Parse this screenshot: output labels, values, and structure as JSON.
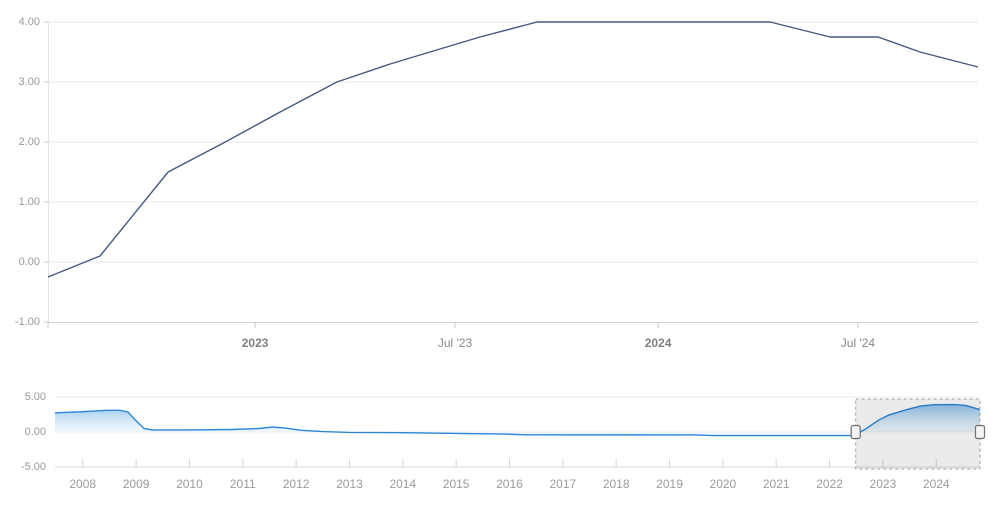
{
  "page": {
    "background": "#ffffff",
    "accent_line_color": "#46597e",
    "navigator_line_color": "#2a86d9"
  },
  "chart_data": [
    {
      "type": "line",
      "name": "main-rate-chart",
      "title": "",
      "xlabel": "",
      "ylabel": "",
      "grid": "horizontal",
      "legend": "none",
      "x_range": [
        2022.486,
        2024.794
      ],
      "ylim": [
        -1,
        4
      ],
      "y_tick_labels": [
        "4.00",
        "3.00",
        "2.00",
        "1.00",
        "0.00",
        "-1.00"
      ],
      "y_tick_values": [
        4,
        3,
        2,
        1,
        0,
        -1
      ],
      "x_ticks": [
        {
          "label": "2023",
          "value": 2023.0,
          "bold": true
        },
        {
          "label": "Jul '23",
          "value": 2023.496,
          "bold": false
        },
        {
          "label": "2024",
          "value": 2024.0,
          "bold": true
        },
        {
          "label": "Jul '24",
          "value": 2024.496,
          "bold": false
        }
      ],
      "series": [
        {
          "name": "interest-rate",
          "color": "#46597e",
          "points": [
            [
              2022.486,
              -0.25
            ],
            [
              2022.615,
              0.1
            ],
            [
              2022.784,
              1.5
            ],
            [
              2022.926,
              2.0
            ],
            [
              2023.062,
              2.5
            ],
            [
              2023.203,
              3.0
            ],
            [
              2023.335,
              3.3
            ],
            [
              2023.434,
              3.5
            ],
            [
              2023.558,
              3.75
            ],
            [
              2023.7,
              4.0
            ],
            [
              2024.278,
              4.0
            ],
            [
              2024.427,
              3.75
            ],
            [
              2024.546,
              3.75
            ],
            [
              2024.65,
              3.5
            ],
            [
              2024.794,
              3.25
            ]
          ]
        }
      ]
    },
    {
      "type": "area",
      "name": "navigator-history",
      "x_range": [
        2007.48,
        2024.82
      ],
      "ylim": [
        -5,
        5
      ],
      "y_tick_labels": [
        "5.00",
        "0.00",
        "-5.00"
      ],
      "y_tick_values": [
        5,
        0,
        -5
      ],
      "x_tick_values": [
        2008,
        2009,
        2010,
        2011,
        2012,
        2013,
        2014,
        2015,
        2016,
        2017,
        2018,
        2019,
        2020,
        2021,
        2022,
        2023,
        2024
      ],
      "x_tick_labels": [
        "2008",
        "2009",
        "2010",
        "2011",
        "2012",
        "2013",
        "2014",
        "2015",
        "2016",
        "2017",
        "2018",
        "2019",
        "2020",
        "2021",
        "2022",
        "2023",
        "2024"
      ],
      "series": [
        {
          "name": "interest-rate-history",
          "color": "#2a86d9",
          "points": [
            [
              2007.48,
              2.75
            ],
            [
              2008.0,
              2.9
            ],
            [
              2008.45,
              3.1
            ],
            [
              2008.7,
              3.1
            ],
            [
              2008.85,
              2.85
            ],
            [
              2009.0,
              1.6
            ],
            [
              2009.15,
              0.5
            ],
            [
              2009.3,
              0.3
            ],
            [
              2010.0,
              0.3
            ],
            [
              2010.8,
              0.35
            ],
            [
              2011.3,
              0.5
            ],
            [
              2011.55,
              0.7
            ],
            [
              2011.8,
              0.55
            ],
            [
              2012.1,
              0.25
            ],
            [
              2012.5,
              0.05
            ],
            [
              2013.0,
              -0.05
            ],
            [
              2014.0,
              -0.1
            ],
            [
              2015.0,
              -0.2
            ],
            [
              2015.9,
              -0.3
            ],
            [
              2016.3,
              -0.4
            ],
            [
              2019.5,
              -0.42
            ],
            [
              2019.8,
              -0.52
            ],
            [
              2022.45,
              -0.52
            ],
            [
              2022.65,
              0.3
            ],
            [
              2022.9,
              1.6
            ],
            [
              2023.1,
              2.4
            ],
            [
              2023.4,
              3.1
            ],
            [
              2023.7,
              3.7
            ],
            [
              2023.95,
              3.9
            ],
            [
              2024.35,
              3.92
            ],
            [
              2024.55,
              3.8
            ],
            [
              2024.82,
              3.2
            ]
          ]
        }
      ],
      "selection": {
        "from": 2022.49,
        "to": 2024.82
      }
    }
  ]
}
